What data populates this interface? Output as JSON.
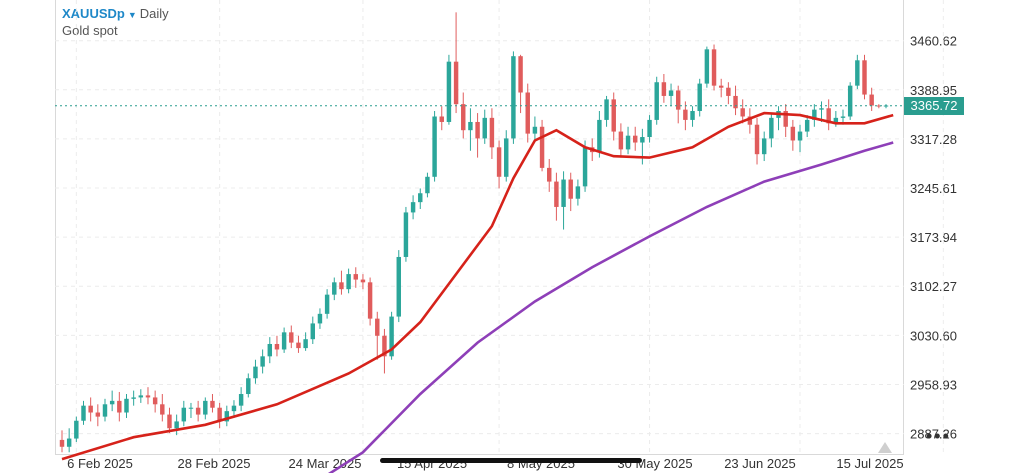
{
  "header": {
    "symbol": "XAUUSDp",
    "caret": "▼",
    "timeframe": "Daily",
    "subtitle": "Gold spot",
    "more_icon": "more-horizontal-icon"
  },
  "current_price": "3365.72",
  "colors": {
    "up": "#2ba69a",
    "down": "#e05c5c",
    "ma_fast": "#d6221a",
    "ma_slow": "#8e3fb8",
    "price_line": "#2a9d8f"
  },
  "chart_data": {
    "type": "candlestick",
    "y_ticks": [
      "3460.62",
      "3388.95",
      "3317.28",
      "3245.61",
      "3173.94",
      "3102.27",
      "3030.60",
      "2958.93",
      "2887.26"
    ],
    "x_ticks": [
      "6 Feb 2025",
      "28 Feb 2025",
      "24 Mar 2025",
      "15 Apr 2025",
      "8 May 2025",
      "30 May 2025",
      "23 Jun 2025",
      "15 Jul 2025"
    ],
    "ylim": [
      2856,
      3520
    ],
    "n_bars": 116,
    "candles": [
      [
        2878,
        2868,
        2892,
        2860
      ],
      [
        2868,
        2880,
        2895,
        2860
      ],
      [
        2880,
        2906,
        2912,
        2875
      ],
      [
        2906,
        2928,
        2935,
        2900
      ],
      [
        2928,
        2918,
        2940,
        2905
      ],
      [
        2918,
        2912,
        2930,
        2898
      ],
      [
        2912,
        2930,
        2938,
        2905
      ],
      [
        2930,
        2935,
        2950,
        2920
      ],
      [
        2935,
        2918,
        2948,
        2905
      ],
      [
        2918,
        2938,
        2945,
        2910
      ],
      [
        2938,
        2940,
        2950,
        2928
      ],
      [
        2940,
        2943,
        2952,
        2932
      ],
      [
        2943,
        2940,
        2955,
        2930
      ],
      [
        2940,
        2930,
        2950,
        2918
      ],
      [
        2930,
        2915,
        2945,
        2905
      ],
      [
        2915,
        2895,
        2925,
        2888
      ],
      [
        2895,
        2905,
        2915,
        2885
      ],
      [
        2905,
        2925,
        2935,
        2898
      ],
      [
        2925,
        2925,
        2932,
        2910
      ],
      [
        2925,
        2915,
        2935,
        2905
      ],
      [
        2915,
        2935,
        2940,
        2908
      ],
      [
        2935,
        2925,
        2945,
        2918
      ],
      [
        2925,
        2905,
        2932,
        2895
      ],
      [
        2905,
        2920,
        2928,
        2898
      ],
      [
        2920,
        2928,
        2936,
        2910
      ],
      [
        2928,
        2945,
        2955,
        2920
      ],
      [
        2945,
        2968,
        2975,
        2940
      ],
      [
        2968,
        2985,
        2995,
        2960
      ],
      [
        2985,
        3000,
        3010,
        2975
      ],
      [
        3000,
        3018,
        3028,
        2990
      ],
      [
        3018,
        3010,
        3030,
        3000
      ],
      [
        3010,
        3035,
        3042,
        3005
      ],
      [
        3035,
        3020,
        3045,
        3012
      ],
      [
        3020,
        3012,
        3030,
        3005
      ],
      [
        3012,
        3025,
        3035,
        3008
      ],
      [
        3025,
        3048,
        3058,
        3018
      ],
      [
        3048,
        3062,
        3070,
        3040
      ],
      [
        3062,
        3090,
        3098,
        3055
      ],
      [
        3090,
        3108,
        3115,
        3082
      ],
      [
        3108,
        3098,
        3125,
        3090
      ],
      [
        3098,
        3120,
        3128,
        3092
      ],
      [
        3120,
        3112,
        3130,
        3100
      ],
      [
        3112,
        3108,
        3120,
        3098
      ],
      [
        3108,
        3055,
        3115,
        3045
      ],
      [
        3055,
        3030,
        3065,
        2995
      ],
      [
        3030,
        3000,
        3040,
        2975
      ],
      [
        3000,
        3058,
        3065,
        2995
      ],
      [
        3058,
        3145,
        3155,
        3050
      ],
      [
        3145,
        3210,
        3218,
        3138
      ],
      [
        3210,
        3225,
        3235,
        3200
      ],
      [
        3225,
        3238,
        3245,
        3215
      ],
      [
        3238,
        3262,
        3268,
        3232
      ],
      [
        3262,
        3350,
        3358,
        3255
      ],
      [
        3350,
        3342,
        3365,
        3330
      ],
      [
        3342,
        3430,
        3440,
        3338
      ],
      [
        3430,
        3368,
        3502,
        3355
      ],
      [
        3368,
        3330,
        3385,
        3318
      ],
      [
        3330,
        3342,
        3362,
        3300
      ],
      [
        3342,
        3318,
        3355,
        3290
      ],
      [
        3318,
        3348,
        3360,
        3310
      ],
      [
        3348,
        3305,
        3362,
        3288
      ],
      [
        3305,
        3262,
        3315,
        3245
      ],
      [
        3262,
        3318,
        3330,
        3255
      ],
      [
        3318,
        3438,
        3445,
        3310
      ],
      [
        3438,
        3385,
        3440,
        3355
      ],
      [
        3385,
        3325,
        3398,
        3312
      ],
      [
        3325,
        3335,
        3350,
        3315
      ],
      [
        3335,
        3275,
        3345,
        3270
      ],
      [
        3275,
        3255,
        3288,
        3240
      ],
      [
        3255,
        3218,
        3268,
        3198
      ],
      [
        3218,
        3258,
        3270,
        3185
      ],
      [
        3258,
        3230,
        3268,
        3212
      ],
      [
        3230,
        3248,
        3258,
        3220
      ],
      [
        3248,
        3305,
        3315,
        3240
      ],
      [
        3305,
        3298,
        3318,
        3285
      ],
      [
        3298,
        3345,
        3358,
        3290
      ],
      [
        3345,
        3375,
        3380,
        3335
      ],
      [
        3375,
        3328,
        3385,
        3315
      ],
      [
        3328,
        3302,
        3340,
        3290
      ],
      [
        3302,
        3322,
        3335,
        3295
      ],
      [
        3322,
        3312,
        3335,
        3300
      ],
      [
        3312,
        3320,
        3332,
        3280
      ],
      [
        3320,
        3345,
        3352,
        3312
      ],
      [
        3345,
        3400,
        3408,
        3338
      ],
      [
        3400,
        3380,
        3412,
        3370
      ],
      [
        3380,
        3388,
        3398,
        3365
      ],
      [
        3388,
        3360,
        3395,
        3340
      ],
      [
        3360,
        3345,
        3372,
        3330
      ],
      [
        3345,
        3358,
        3365,
        3335
      ],
      [
        3358,
        3398,
        3405,
        3350
      ],
      [
        3398,
        3448,
        3452,
        3392
      ],
      [
        3448,
        3395,
        3455,
        3388
      ],
      [
        3395,
        3392,
        3405,
        3378
      ],
      [
        3392,
        3380,
        3400,
        3368
      ],
      [
        3380,
        3362,
        3395,
        3352
      ],
      [
        3362,
        3350,
        3375,
        3340
      ],
      [
        3350,
        3338,
        3362,
        3325
      ],
      [
        3338,
        3295,
        3348,
        3280
      ],
      [
        3295,
        3318,
        3328,
        3285
      ],
      [
        3318,
        3348,
        3355,
        3305
      ],
      [
        3348,
        3358,
        3365,
        3330
      ],
      [
        3358,
        3335,
        3368,
        3320
      ],
      [
        3335,
        3315,
        3345,
        3300
      ],
      [
        3315,
        3328,
        3338,
        3298
      ],
      [
        3328,
        3345,
        3352,
        3320
      ],
      [
        3345,
        3360,
        3368,
        3335
      ],
      [
        3360,
        3362,
        3372,
        3342
      ],
      [
        3362,
        3340,
        3375,
        3330
      ],
      [
        3340,
        3348,
        3358,
        3335
      ],
      [
        3348,
        3350,
        3360,
        3338
      ],
      [
        3350,
        3395,
        3400,
        3345
      ],
      [
        3395,
        3432,
        3440,
        3390
      ],
      [
        3432,
        3382,
        3440,
        3375
      ],
      [
        3382,
        3366,
        3392,
        3358
      ],
      [
        3366,
        3365,
        3368,
        3362
      ],
      [
        3365,
        3366,
        3368,
        3362
      ]
    ],
    "ma_fast": [
      [
        0,
        2850
      ],
      [
        10,
        2882
      ],
      [
        20,
        2900
      ],
      [
        30,
        2930
      ],
      [
        40,
        2975
      ],
      [
        46,
        3010
      ],
      [
        50,
        3050
      ],
      [
        55,
        3120
      ],
      [
        60,
        3190
      ],
      [
        63,
        3260
      ],
      [
        66,
        3315
      ],
      [
        69,
        3330
      ],
      [
        73,
        3305
      ],
      [
        77,
        3292
      ],
      [
        82,
        3290
      ],
      [
        88,
        3305
      ],
      [
        93,
        3335
      ],
      [
        98,
        3355
      ],
      [
        103,
        3352
      ],
      [
        108,
        3340
      ],
      [
        112,
        3340
      ],
      [
        116,
        3352
      ]
    ],
    "ma_slow": [
      [
        36,
        2820
      ],
      [
        42,
        2860
      ],
      [
        50,
        2945
      ],
      [
        58,
        3020
      ],
      [
        66,
        3080
      ],
      [
        74,
        3130
      ],
      [
        82,
        3175
      ],
      [
        90,
        3218
      ],
      [
        98,
        3255
      ],
      [
        106,
        3280
      ],
      [
        112,
        3300
      ],
      [
        116,
        3312
      ]
    ]
  }
}
